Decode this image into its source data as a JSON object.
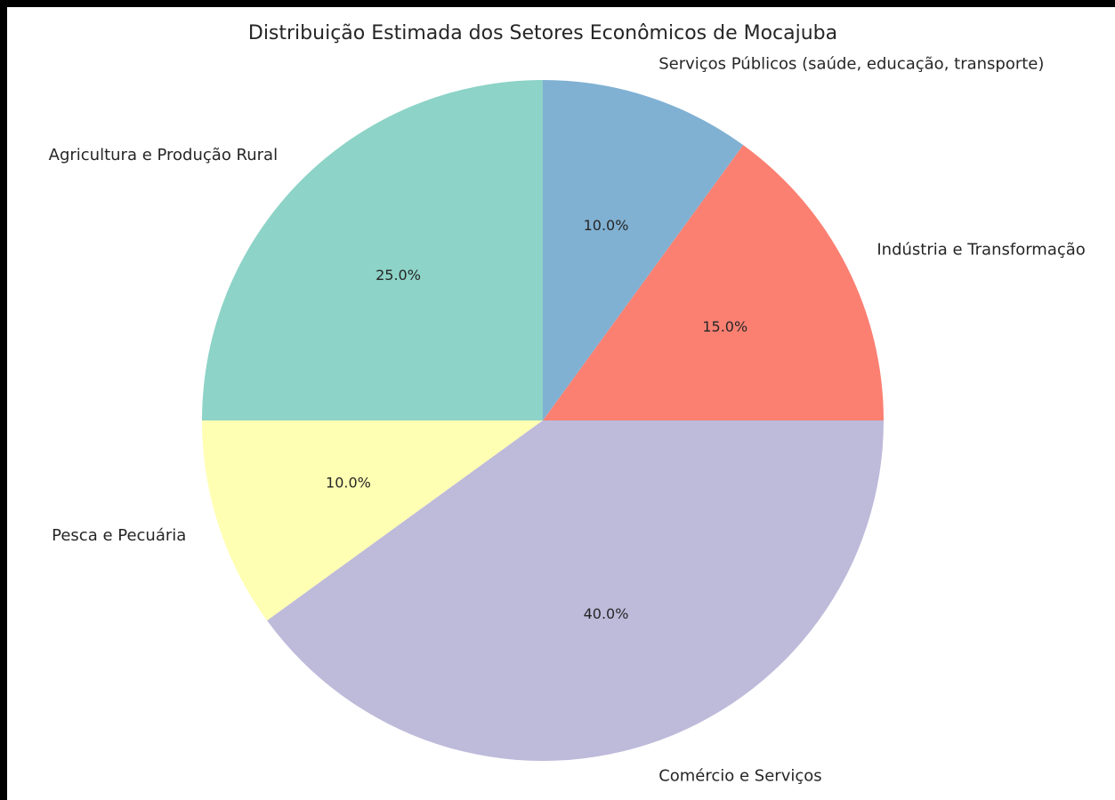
{
  "chart_data": {
    "type": "pie",
    "title": "Distribuição Estimada dos Setores Econômicos de Mocajuba",
    "categories": [
      "Agricultura e Produção Rural",
      "Pesca e Pecuária",
      "Comércio e Serviços",
      "Indústria e Transformação",
      "Serviços Públicos (saúde, educação, transporte)"
    ],
    "values": [
      25,
      10,
      40,
      15,
      10
    ],
    "value_labels": [
      "25.0%",
      "10.0%",
      "40.0%",
      "15.0%",
      "10.0%"
    ],
    "colors": [
      "#8dd3c7",
      "#ffffb3",
      "#bebada",
      "#fb8072",
      "#80b1d3"
    ],
    "start_angle": 90
  }
}
